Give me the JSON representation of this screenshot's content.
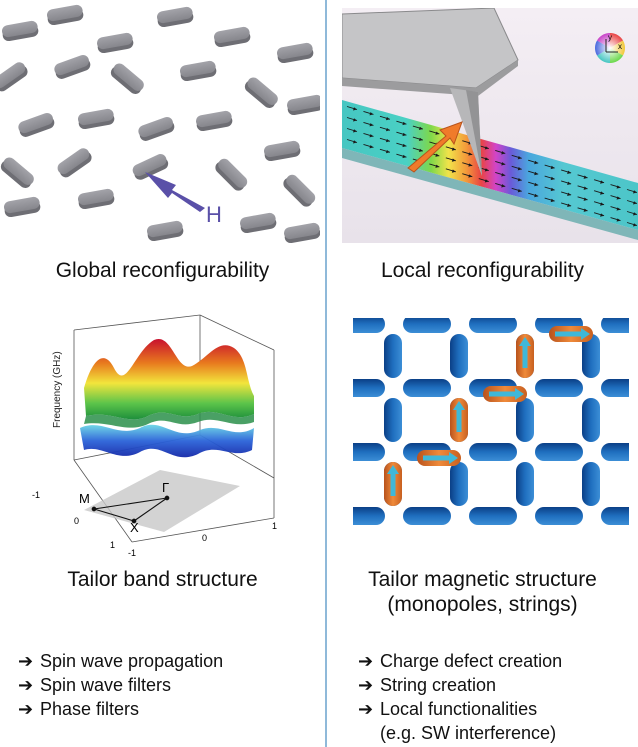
{
  "top_left": {
    "field_label": "H",
    "caption": "Global reconfigurability"
  },
  "top_right": {
    "caption": "Local reconfigurability",
    "colorwheel_axes": {
      "x": "x",
      "y": "y"
    }
  },
  "bottom_left": {
    "caption": "Tailor band structure",
    "axis_label": "Frequency (GHz)",
    "points": {
      "m": "M",
      "gamma": "Γ",
      "x": "X"
    },
    "ticks_left": [
      "-1",
      "0",
      "1"
    ],
    "ticks_bottom": [
      "-1",
      "0",
      "1"
    ]
  },
  "bottom_right": {
    "caption_line1": "Tailor magnetic structure",
    "caption_line2": "(monopoles, strings)"
  },
  "bullets_left": [
    "Spin wave propagation",
    "Spin wave filters",
    "Phase filters"
  ],
  "bullets_right": [
    "Charge defect creation",
    "String creation",
    "Local functionalities",
    "(e.g. SW interference)"
  ],
  "colors": {
    "magnet": "#8e8e94",
    "field_arrow": "#5a50a8",
    "honeycomb_blue": "#1f6fbf",
    "flipped_orange": "#e57a2a",
    "divider": "#8fb9d9"
  }
}
